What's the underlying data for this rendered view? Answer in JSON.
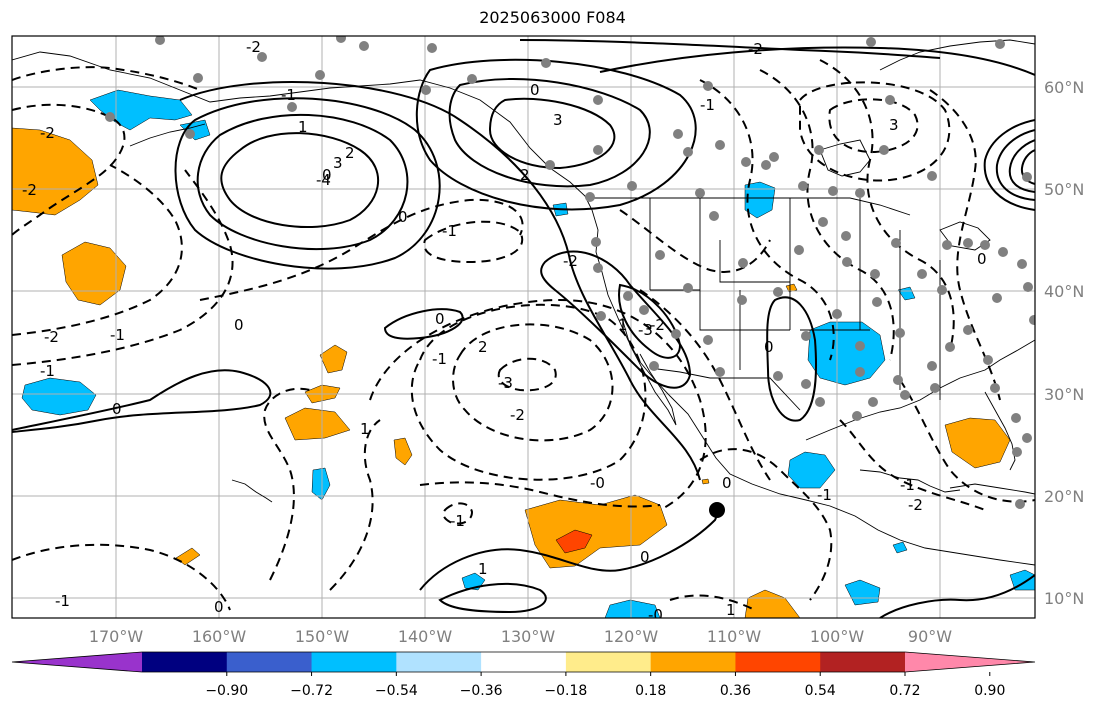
{
  "title": "2025063000 F084",
  "lat_labels": [
    "60°N",
    "50°N",
    "40°N",
    "30°N",
    "20°N",
    "10°N"
  ],
  "lon_labels": [
    "170°W",
    "160°W",
    "150°W",
    "140°W",
    "130°W",
    "120°W",
    "110°W",
    "100°W",
    "90°W"
  ],
  "colorbar": {
    "colors": [
      "#9933cc",
      "#000080",
      "#3a5fcd",
      "#00bfff",
      "#b0e2ff",
      "#ffffff",
      "#ffec8b",
      "#ffa500",
      "#ff4500",
      "#b22222",
      "#ff88aa"
    ],
    "ticks": [
      "−0.90",
      "−0.72",
      "−0.54",
      "−0.36",
      "−0.18",
      "0.18",
      "0.36",
      "0.54",
      "0.72",
      "0.90"
    ]
  },
  "colors": {
    "positive_anomaly": "#ffa500",
    "strong_positive_anomaly": "#ff4500",
    "negative_anomaly": "#00bfff",
    "station_marker": "#808080",
    "grid": "#b0b0b0"
  },
  "contour_labels": [
    "-2",
    "-2",
    "-1",
    "1",
    "3",
    "2",
    "-2",
    "0",
    "-1",
    "0",
    "3",
    "-2",
    "2",
    "-4",
    "3",
    "0",
    "0",
    "-1",
    "-2",
    "1",
    "-2",
    "-1",
    "0",
    "-1",
    "2",
    "-3",
    "-2",
    "-1",
    "0",
    "1",
    "-1",
    "0",
    "-3",
    "-2",
    "0",
    "0",
    "-1",
    "0",
    "-1",
    "1",
    "-1",
    "-2",
    "-0",
    "-0",
    "0",
    "1"
  ]
}
